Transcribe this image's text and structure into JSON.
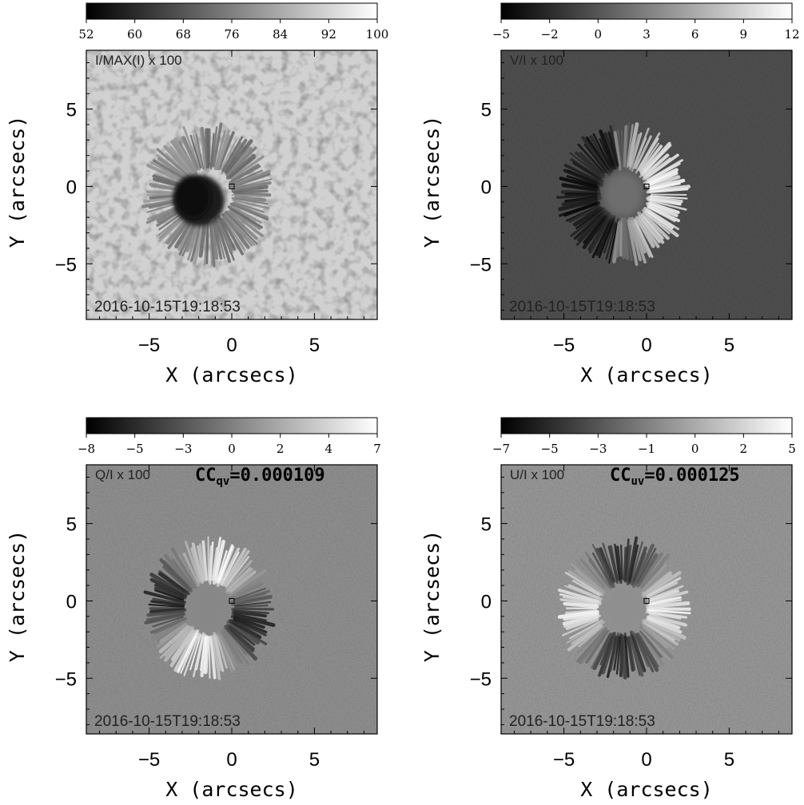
{
  "chart_data": [
    {
      "type": "heatmap",
      "panel_label": "I/MAX(I) x 100",
      "colorbar_ticks": [
        "52",
        "60",
        "68",
        "76",
        "84",
        "92",
        "100"
      ],
      "colorbar_range": [
        52,
        100
      ],
      "xlabel": "X (arcsecs)",
      "ylabel": "Y (arcsecs)",
      "xticks": [
        "−5",
        "0",
        "5"
      ],
      "yticks": [
        "5",
        "0",
        "−5"
      ],
      "xlim": [
        -8.8,
        8.8
      ],
      "ylim": [
        -8.6,
        8.8
      ],
      "timestamp": "2016-10-15T19:18:53",
      "cc_label": "",
      "cc_sub": "",
      "cc_value": "",
      "colormap": "grayscale",
      "background_level": 0.82,
      "feature": "sunspot intensity: dark umbra, filamentary penumbra, granulated quiet sun"
    },
    {
      "type": "heatmap",
      "panel_label": "V/I x 100",
      "colorbar_ticks": [
        "−5",
        "−2",
        "0",
        "3",
        "6",
        "9",
        "12"
      ],
      "colorbar_range": [
        -5,
        12
      ],
      "xlabel": "X (arcsecs)",
      "ylabel": "Y (arcsecs)",
      "xticks": [
        "−5",
        "0",
        "5"
      ],
      "yticks": [
        "5",
        "0",
        "−5"
      ],
      "xlim": [
        -8.8,
        8.8
      ],
      "ylim": [
        -8.6,
        8.8
      ],
      "timestamp": "2016-10-15T19:18:53",
      "cc_label": "",
      "cc_sub": "",
      "cc_value": "",
      "colormap": "grayscale",
      "background_level": 0.3,
      "feature": "circular polarization: dark east limb, bright west penumbra"
    },
    {
      "type": "heatmap",
      "panel_label": "Q/I x 100",
      "colorbar_ticks": [
        "−8",
        "−5",
        "−3",
        "0",
        "2",
        "4",
        "7"
      ],
      "colorbar_range": [
        -8,
        7
      ],
      "xlabel": "X (arcsecs)",
      "ylabel": "Y (arcsecs)",
      "xticks": [
        "−5",
        "0",
        "5"
      ],
      "yticks": [
        "5",
        "0",
        "−5"
      ],
      "xlim": [
        -8.8,
        8.8
      ],
      "ylim": [
        -8.6,
        8.8
      ],
      "timestamp": "2016-10-15T19:18:53",
      "cc_label": "CC",
      "cc_sub": "qv",
      "cc_value": "=0.000109",
      "colormap": "grayscale",
      "background_level": 0.55,
      "feature": "linear polarization Q: dark lobes NE and SW, bright lobes NW and SE"
    },
    {
      "type": "heatmap",
      "panel_label": "U/I x 100",
      "colorbar_ticks": [
        "−7",
        "−5",
        "−3",
        "−1",
        "0",
        "2",
        "5"
      ],
      "colorbar_range": [
        -7,
        5
      ],
      "xlabel": "X (arcsecs)",
      "ylabel": "Y (arcsecs)",
      "xticks": [
        "−5",
        "0",
        "5"
      ],
      "yticks": [
        "5",
        "0",
        "−5"
      ],
      "xlim": [
        -8.8,
        8.8
      ],
      "ylim": [
        -8.6,
        8.8
      ],
      "timestamp": "2016-10-15T19:18:53",
      "cc_label": "CC",
      "cc_sub": "uv",
      "cc_value": "=0.000125",
      "colormap": "grayscale",
      "background_level": 0.58,
      "feature": "linear polarization U: dark lobes N and S, bright lobes E and W"
    }
  ]
}
